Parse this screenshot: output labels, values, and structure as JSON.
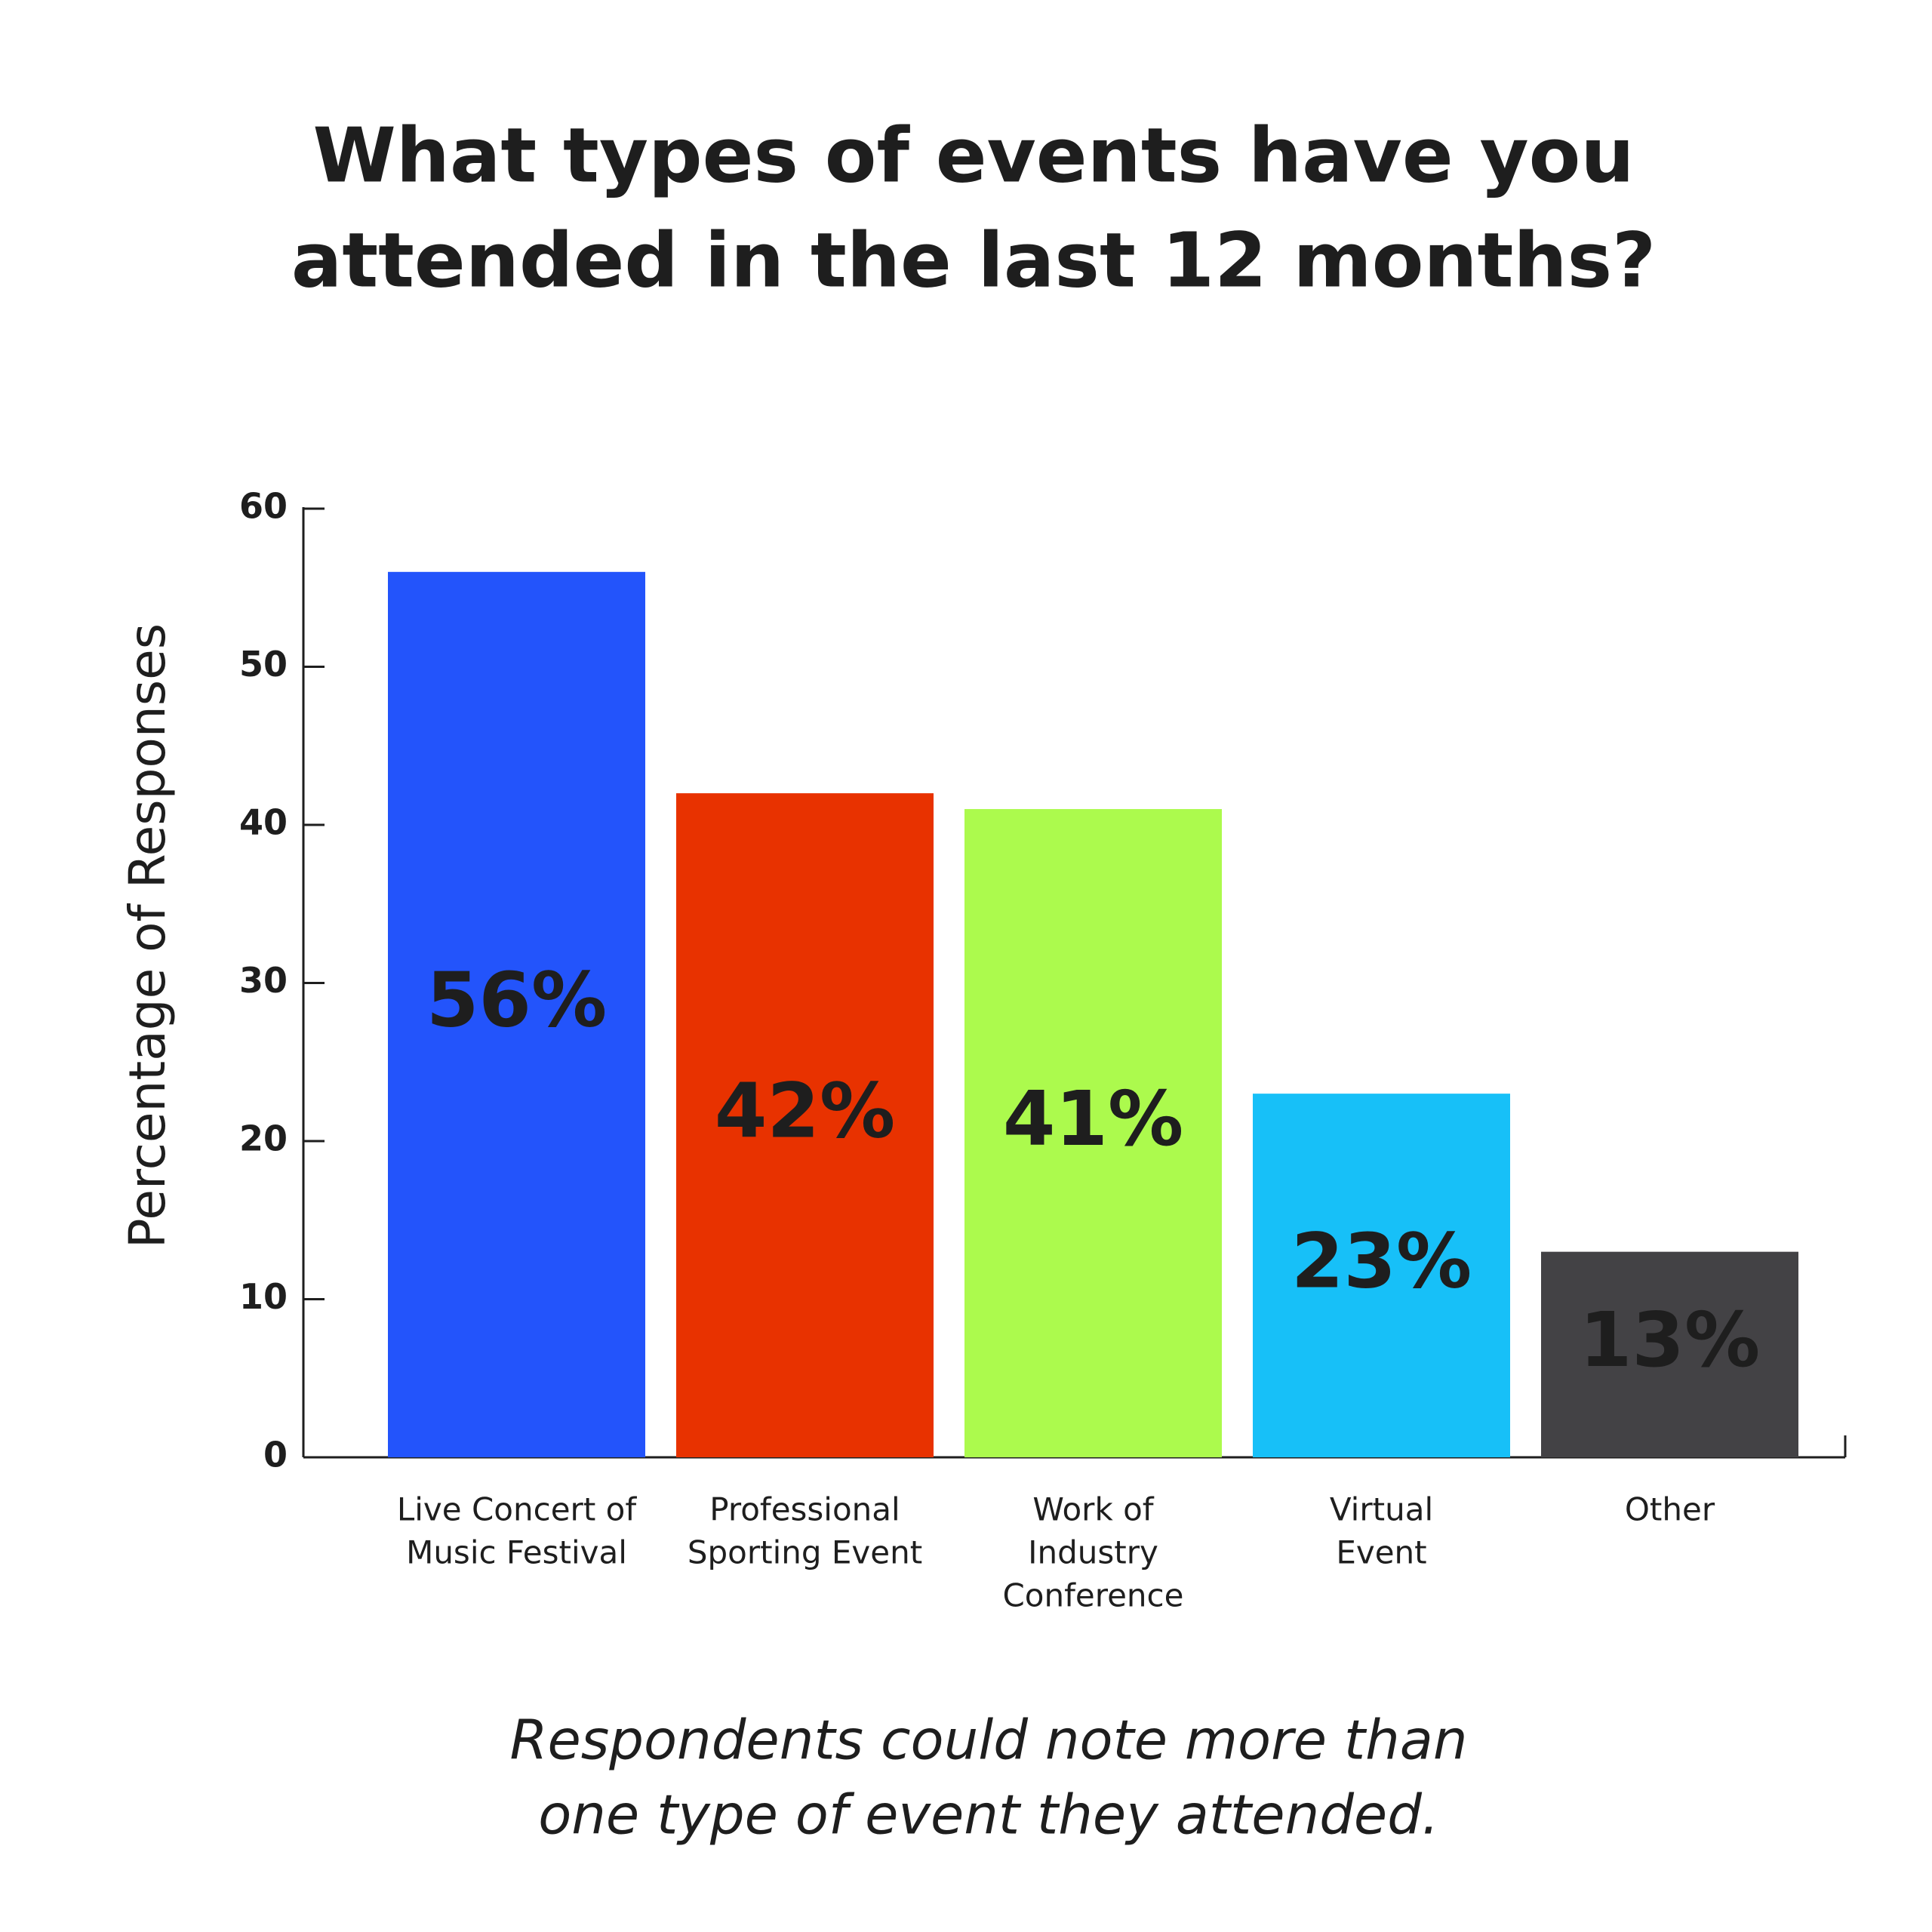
{
  "chart_data": {
    "type": "bar",
    "title": [
      "What types of events have you",
      "attended in the last 12 months?"
    ],
    "y_label": "Percentage of Responses",
    "categories": [
      [
        "Live Concert of",
        "Music Festival"
      ],
      [
        "Professional",
        "Sporting Event"
      ],
      [
        "Work of",
        "Industry",
        "Conference"
      ],
      [
        "Virtual",
        "Event"
      ],
      [
        "Other"
      ]
    ],
    "values": [
      56,
      42,
      41,
      23,
      13
    ],
    "value_labels": [
      "56%",
      "42%",
      "41%",
      "23%",
      "13%"
    ],
    "colors": [
      "#2354fb",
      "#e83200",
      "#acfa4d",
      "#17c0f8",
      "#434245"
    ],
    "value_label_colors": [
      "#ffffff",
      "#ffffff",
      "#1e1e1e",
      "#ffffff",
      "#ffffff"
    ],
    "ylim": [
      0,
      60
    ],
    "yticks": [
      0,
      10,
      20,
      30,
      40,
      50,
      60
    ],
    "grid": false,
    "note": [
      "Respondents could note more than",
      "one type of event they attended."
    ]
  }
}
